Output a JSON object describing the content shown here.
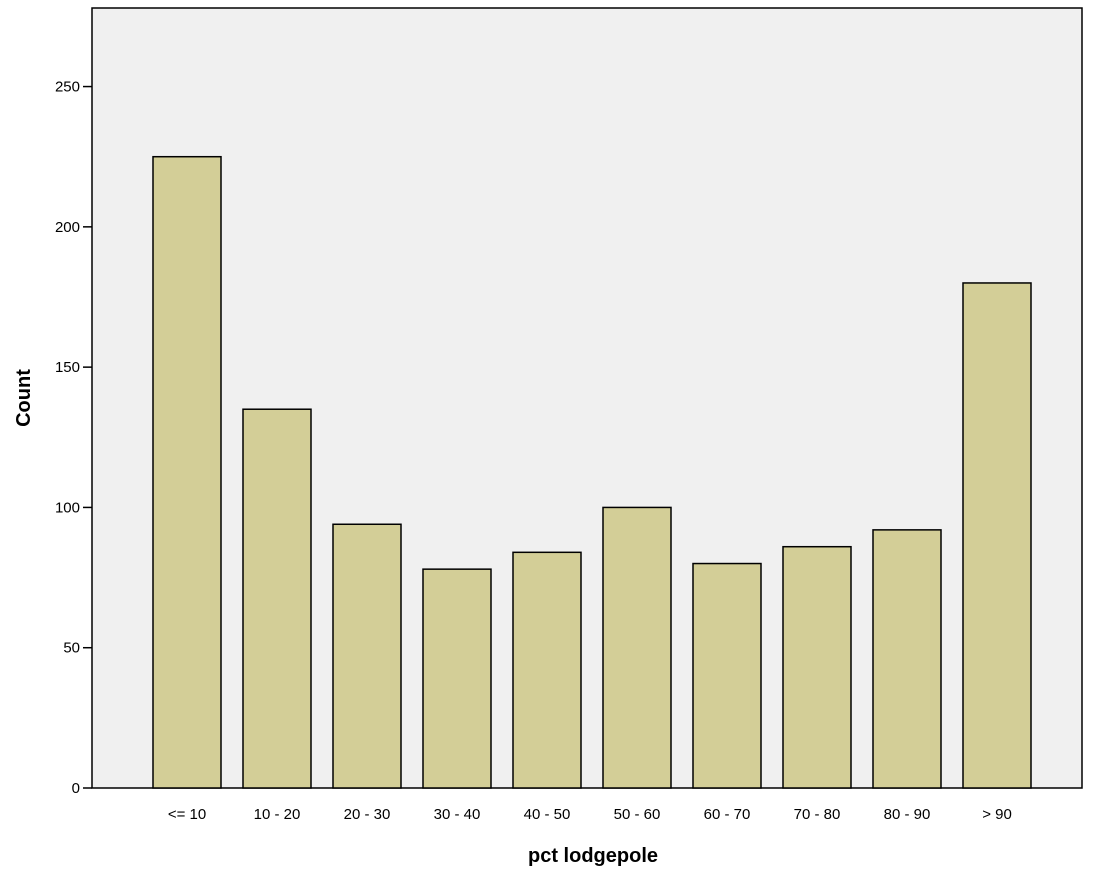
{
  "chart_data": {
    "type": "bar",
    "title": "",
    "xlabel": "pct lodgepole",
    "ylabel": "Count",
    "categories": [
      "<= 10",
      "10 - 20",
      "20 - 30",
      "30 - 40",
      "40 - 50",
      "50 - 60",
      "60 - 70",
      "70 - 80",
      "80 - 90",
      "> 90"
    ],
    "values": [
      225,
      135,
      94,
      78,
      84,
      100,
      80,
      86,
      92,
      180
    ],
    "ylim": [
      0,
      278
    ],
    "yticks": [
      0,
      50,
      100,
      150,
      200,
      250
    ],
    "grid": false,
    "legend": "none",
    "colors": {
      "plot_background": "#f0f0f0",
      "bar_fill": "#d3ce97",
      "bar_stroke": "#000000",
      "axis": "#000000"
    }
  }
}
